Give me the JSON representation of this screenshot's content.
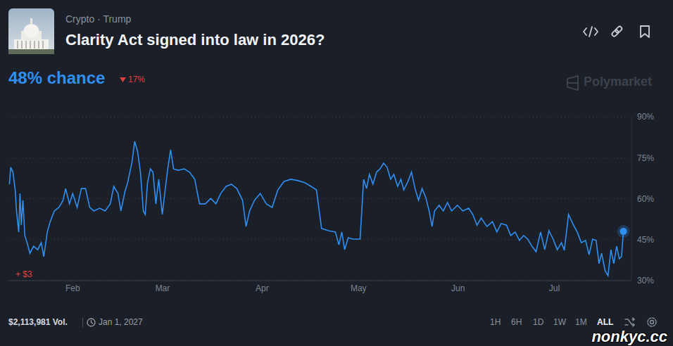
{
  "header": {
    "category": "Crypto · Trump",
    "chance": "48% chance",
    "change": "17%",
    "brand": "Polymarket"
  },
  "chart_data": {
    "type": "line",
    "title": "Clarity Act signed into law in 2026?",
    "color": "#2f8ff2",
    "grid": true,
    "annotations": [
      "+ $3"
    ],
    "xlim": [
      12,
      206
    ],
    "xticks": [
      {
        "value": 32,
        "label": "Feb"
      },
      {
        "value": 60,
        "label": "Mar"
      },
      {
        "value": 91,
        "label": "Apr"
      },
      {
        "value": 121,
        "label": "May"
      },
      {
        "value": 152,
        "label": "Jun"
      },
      {
        "value": 182,
        "label": "Jul"
      }
    ],
    "ylim": [
      30,
      90
    ],
    "yticks": [
      {
        "value": 30,
        "label": "30%"
      },
      {
        "value": 45,
        "label": "45%"
      },
      {
        "value": 60,
        "label": "60%"
      },
      {
        "value": 75,
        "label": "75%"
      },
      {
        "value": 90,
        "label": "90%"
      }
    ],
    "x": [
      12.3,
      12.7,
      13.4,
      14.1,
      14.5,
      15.2,
      15.6,
      16.0,
      16.5,
      17.1,
      17.8,
      18.7,
      19.8,
      21.1,
      22.2,
      23.0,
      24.1,
      25.0,
      26.3,
      27.7,
      29.0,
      29.8,
      31.0,
      32.0,
      33.4,
      34.7,
      36.0,
      37.3,
      38.6,
      40.4,
      42.1,
      43.7,
      44.8,
      46.1,
      47.0,
      48.3,
      49.1,
      50.5,
      51.3,
      52.2,
      53.1,
      54.0,
      54.6,
      55.3,
      56.2,
      57.0,
      57.9,
      58.8,
      59.9,
      60.8,
      61.6,
      62.5,
      63.4,
      64.9,
      66.7,
      68.4,
      70.0,
      71.5,
      73.3,
      75.0,
      76.6,
      78.1,
      79.8,
      81.4,
      83.1,
      84.9,
      86.0,
      87.1,
      88.6,
      90.4,
      92.3,
      94.1,
      95.9,
      97.8,
      100.0,
      102.2,
      104.4,
      106.2,
      107.9,
      109.5,
      111.6,
      113.8,
      114.9,
      115.8,
      116.7,
      117.8,
      119.3,
      121.5,
      122.6,
      123.5,
      124.4,
      125.5,
      126.6,
      127.7,
      128.8,
      129.9,
      131.0,
      132.0,
      133.2,
      134.2,
      135.1,
      136.4,
      137.5,
      138.6,
      139.7,
      140.8,
      141.9,
      143.0,
      143.9,
      144.7,
      146.1,
      147.4,
      148.7,
      150.0,
      151.8,
      153.5,
      155.3,
      156.6,
      157.9,
      159.2,
      161.0,
      162.7,
      164.1,
      165.4,
      167.1,
      168.4,
      169.8,
      171.1,
      172.4,
      173.7,
      175.0,
      176.3,
      177.7,
      179.0,
      180.3,
      181.6,
      182.9,
      184.2,
      185.1,
      186.4,
      187.7,
      189.1,
      190.4,
      191.7,
      192.8,
      193.9,
      195.0,
      195.9,
      196.7,
      197.8,
      198.7,
      199.6,
      200.5,
      201.4,
      202.2,
      202.9,
      203.5
    ],
    "values": [
      65.3,
      71.5,
      69.7,
      63.2,
      55.5,
      47.8,
      61.9,
      50.3,
      59.4,
      46.5,
      43.9,
      40.0,
      42.6,
      41.3,
      43.9,
      38.8,
      47.8,
      51.6,
      55.5,
      56.8,
      59.4,
      63.7,
      58.1,
      61.9,
      56.8,
      63.7,
      63.7,
      56.8,
      55.5,
      56.5,
      55.5,
      58.1,
      64.5,
      61.9,
      55.5,
      62.7,
      65.8,
      73.5,
      81.0,
      77.4,
      69.7,
      55.5,
      54.2,
      65.8,
      70.9,
      69.7,
      58.1,
      67.1,
      54.2,
      63.2,
      70.9,
      77.9,
      70.9,
      70.4,
      70.9,
      69.7,
      67.1,
      58.1,
      58.1,
      60.1,
      58.1,
      61.9,
      64.5,
      65.3,
      63.7,
      59.4,
      49.8,
      55.5,
      59.4,
      61.9,
      58.1,
      56.8,
      63.2,
      66.3,
      67.1,
      66.6,
      65.8,
      64.5,
      63.2,
      49.1,
      48.3,
      47.8,
      43.1,
      47.8,
      41.3,
      45.7,
      45.2,
      45.2,
      67.1,
      63.7,
      68.9,
      65.3,
      69.7,
      70.9,
      73.0,
      71.5,
      67.1,
      68.9,
      64.5,
      67.1,
      63.2,
      66.3,
      69.7,
      63.7,
      59.4,
      63.7,
      60.6,
      55.5,
      49.8,
      55.5,
      57.6,
      55.5,
      58.6,
      55.5,
      57.6,
      55.5,
      56.5,
      54.2,
      50.3,
      52.9,
      49.8,
      51.6,
      47.8,
      50.9,
      50.3,
      46.5,
      47.8,
      44.7,
      46.5,
      45.2,
      42.6,
      40.6,
      47.8,
      41.3,
      48.3,
      45.2,
      41.3,
      43.9,
      41.1,
      54.2,
      50.9,
      47.8,
      43.9,
      44.7,
      39.5,
      45.2,
      44.7,
      36.2,
      40.0,
      33.6,
      31.8,
      41.3,
      36.2,
      42.6,
      38.0,
      38.8,
      48.0
    ]
  },
  "footer": {
    "volume": "$2,113,981 Vol.",
    "end_date": "Jan 1, 2027",
    "ranges": [
      "1H",
      "6H",
      "1D",
      "1W",
      "1M",
      "ALL"
    ],
    "watermark": "nonkyc.cc"
  }
}
